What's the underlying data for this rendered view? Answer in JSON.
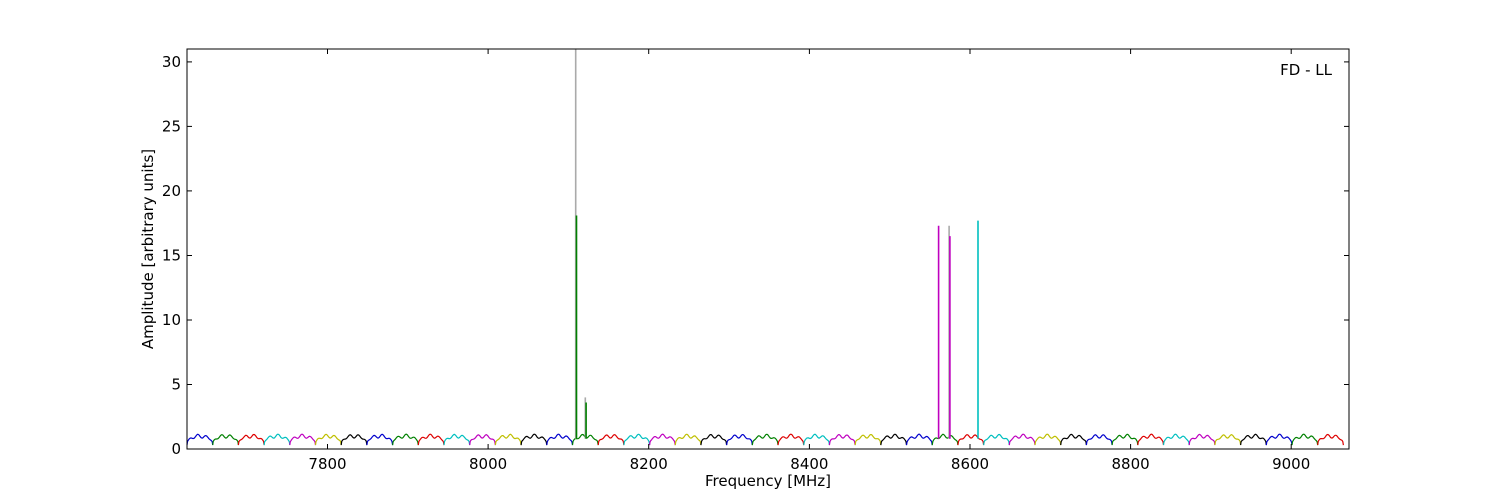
{
  "chart_data": {
    "type": "line",
    "title": "",
    "xlabel": "Frequency [MHz]",
    "ylabel": "Amplitude [arbitrary units]",
    "annotation": "FD - LL",
    "xlim": [
      7625,
      9072
    ],
    "ylim": [
      0,
      31
    ],
    "xticks": [
      7800,
      8000,
      8200,
      8400,
      8600,
      8800,
      9000
    ],
    "yticks": [
      0,
      5,
      10,
      15,
      20,
      25,
      30
    ],
    "grid": false,
    "legend": "none",
    "channel_width_mhz": 32,
    "channel_start_mhz": 7625,
    "channel_count": 45,
    "channel_profile": {
      "baseline_amplitude": 1.0,
      "edge_amplitude": 0.3,
      "ripple_amplitude": 0.15
    },
    "color_cycle": [
      "#0000cc",
      "#008000",
      "#dd0000",
      "#00bfbf",
      "#bf00bf",
      "#bfbf00",
      "#000000"
    ],
    "spikes": [
      {
        "x": 8109,
        "y": 31,
        "color": "#aaaaaa"
      },
      {
        "x": 8110,
        "y": 18.1,
        "color": "#008000"
      },
      {
        "x": 8121,
        "y": 4.0,
        "color": "#aaaaaa"
      },
      {
        "x": 8122,
        "y": 3.6,
        "color": "#008000"
      },
      {
        "x": 8561,
        "y": 17.3,
        "color": "#bf00bf"
      },
      {
        "x": 8574,
        "y": 17.3,
        "color": "#aaaaaa"
      },
      {
        "x": 8575,
        "y": 16.5,
        "color": "#bf00bf"
      },
      {
        "x": 8610,
        "y": 17.7,
        "color": "#00bfbf"
      }
    ]
  }
}
